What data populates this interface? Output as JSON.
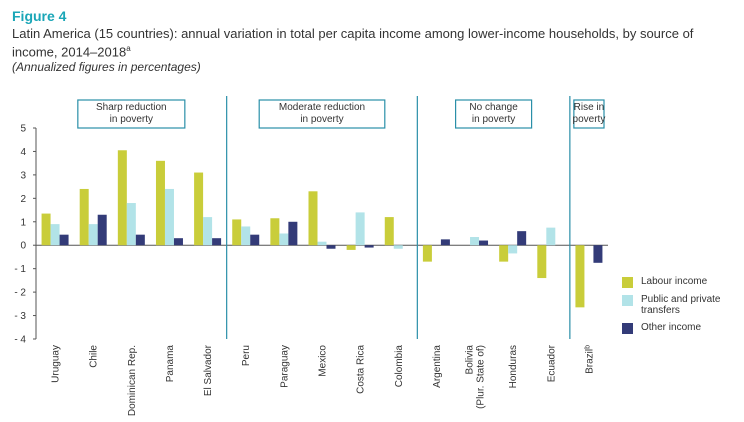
{
  "figure": {
    "label": "Figure 4",
    "title": "Latin America (15 countries): annual variation in total per capita income among lower-income households, by source of income, 2014–2018",
    "title_sup": "a",
    "subtitle": "(Annualized figures in percentages)"
  },
  "colors": {
    "labour": "#c9cd3a",
    "transfers": "#b2e3e8",
    "other": "#333b78",
    "divider": "#2a8fa8",
    "group_border": "#2a8fa8"
  },
  "chart_data": {
    "type": "bar",
    "ylim": [
      -4,
      5
    ],
    "yticks": [
      "5",
      "4",
      "3",
      "2",
      "1",
      "0",
      "- 1",
      "- 2",
      "- 3",
      "- 4"
    ],
    "ytick_values": [
      5,
      4,
      3,
      2,
      1,
      0,
      -1,
      -2,
      -3,
      -4
    ],
    "categories": [
      "Uruguay",
      "Chile",
      "Dominican Rep.",
      "Panama",
      "El Salvador",
      "Peru",
      "Paraguay",
      "Mexico",
      "Costa Rica",
      "Colombia",
      "Argentina",
      "Bolivia (Plur. State of)",
      "Honduras",
      "Ecuador",
      "Brazil"
    ],
    "category_lines": [
      [
        "Uruguay"
      ],
      [
        "Chile"
      ],
      [
        "Dominican Rep."
      ],
      [
        "Panama"
      ],
      [
        "El Salvador"
      ],
      [
        "Peru"
      ],
      [
        "Paraguay"
      ],
      [
        "Mexico"
      ],
      [
        "Costa Rica"
      ],
      [
        "Colombia"
      ],
      [
        "Argentina"
      ],
      [
        "Bolivia",
        "(Plur. State of)"
      ],
      [
        "Honduras"
      ],
      [
        "Ecuador"
      ],
      [
        "Brazil"
      ]
    ],
    "category_sup": [
      "",
      "",
      "",
      "",
      "",
      "",
      "",
      "",
      "",
      "",
      "",
      "",
      "",
      "",
      "b"
    ],
    "series": [
      {
        "name": "Labour income",
        "key": "labour",
        "values": [
          1.35,
          2.4,
          4.05,
          3.6,
          3.1,
          1.1,
          1.15,
          2.3,
          -0.2,
          1.2,
          -0.7,
          0.0,
          -0.7,
          -1.4,
          -2.65
        ]
      },
      {
        "name": "Public and private transfers",
        "key": "transfers",
        "values": [
          0.9,
          0.9,
          1.8,
          2.4,
          1.2,
          0.8,
          0.5,
          0.15,
          1.4,
          -0.15,
          0.0,
          0.35,
          -0.35,
          0.75,
          0.0
        ]
      },
      {
        "name": "Other income",
        "key": "other",
        "values": [
          0.45,
          1.3,
          0.45,
          0.3,
          0.3,
          0.45,
          1.0,
          -0.15,
          -0.1,
          0.0,
          0.25,
          0.2,
          0.6,
          0.0,
          -0.75
        ]
      }
    ],
    "groups": [
      {
        "label": "Sharp reduction in poverty",
        "lines": [
          "Sharp reduction",
          "in poverty"
        ],
        "start": 0,
        "end": 4
      },
      {
        "label": "Moderate reduction in poverty",
        "lines": [
          "Moderate reduction",
          "in poverty"
        ],
        "start": 5,
        "end": 9
      },
      {
        "label": "No change in poverty",
        "lines": [
          "No change",
          "in poverty"
        ],
        "start": 10,
        "end": 13
      },
      {
        "label": "Rise in poverty",
        "lines": [
          "Rise in",
          "poverty"
        ],
        "start": 14,
        "end": 14
      }
    ]
  }
}
